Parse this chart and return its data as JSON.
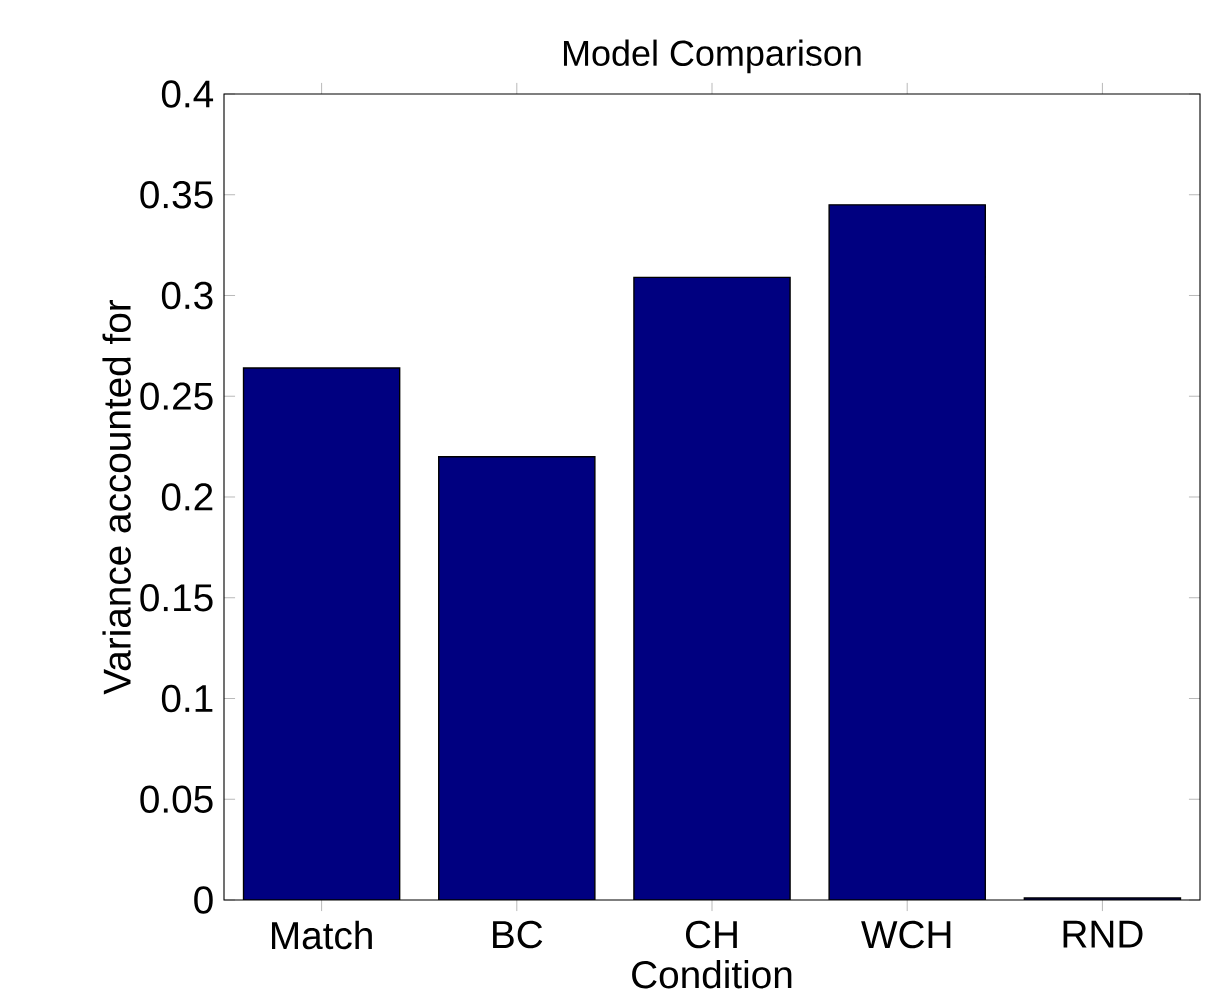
{
  "chart_data": {
    "type": "bar",
    "title": "Model Comparison",
    "xlabel": "Condition",
    "ylabel": "Variance accounted for",
    "categories": [
      "Match",
      "BC",
      "CH",
      "WCH",
      "RND"
    ],
    "values": [
      0.264,
      0.22,
      0.309,
      0.345,
      0.001
    ],
    "color": "#000080",
    "ylim": [
      0,
      0.4
    ],
    "yticks": [
      0,
      0.05,
      0.1,
      0.15,
      0.2,
      0.25,
      0.3,
      0.35,
      0.4
    ],
    "grid": false
  }
}
